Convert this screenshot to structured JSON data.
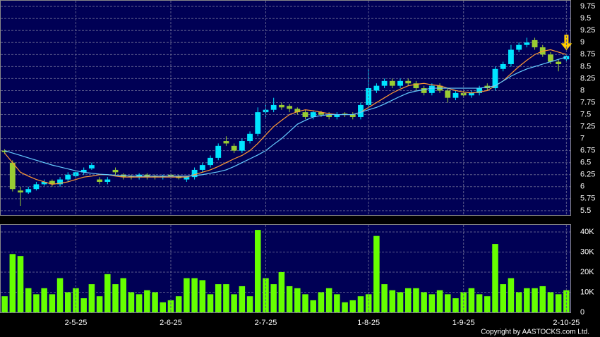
{
  "chart_data": [
    {
      "type": "candlestick",
      "open": [
        6.75,
        6.5,
        5.92,
        5.88,
        5.95,
        6.05,
        6.12,
        6.05,
        6.15,
        6.22,
        6.3,
        6.38,
        6.15,
        6.1,
        6.35,
        6.25,
        6.22,
        6.2,
        6.25,
        6.22,
        6.2,
        6.25,
        6.22,
        6.15,
        6.2,
        6.35,
        6.45,
        6.6,
        6.95,
        6.85,
        6.75,
        6.95,
        7.1,
        7.55,
        7.6,
        7.7,
        7.68,
        7.62,
        7.55,
        7.45,
        7.55,
        7.5,
        7.45,
        7.52,
        7.5,
        7.45,
        7.7,
        8.0,
        8.1,
        8.2,
        8.1,
        8.2,
        8.15,
        8.05,
        7.95,
        8.1,
        8.0,
        7.85,
        7.95,
        7.9,
        7.95,
        8.1,
        8.05,
        8.45,
        8.55,
        8.85,
        8.95,
        9.05,
        8.9,
        8.75,
        8.6,
        8.65
      ],
      "high": [
        6.78,
        6.55,
        6.0,
        6.0,
        6.1,
        6.15,
        6.15,
        6.2,
        6.3,
        6.35,
        6.4,
        6.5,
        6.2,
        6.2,
        6.4,
        6.28,
        6.25,
        6.28,
        6.28,
        6.25,
        6.25,
        6.28,
        6.25,
        6.22,
        6.4,
        6.5,
        6.65,
        6.9,
        7.05,
        6.9,
        7.0,
        7.15,
        7.65,
        7.7,
        7.85,
        7.75,
        7.72,
        7.65,
        7.6,
        7.58,
        7.58,
        7.55,
        7.55,
        7.55,
        7.55,
        7.75,
        8.45,
        8.15,
        8.25,
        8.25,
        8.25,
        8.25,
        8.2,
        8.1,
        8.15,
        8.15,
        8.05,
        8.0,
        8.0,
        8.0,
        8.1,
        8.15,
        8.5,
        8.6,
        8.95,
        9.0,
        9.1,
        9.1,
        8.95,
        8.8,
        8.65,
        8.75
      ],
      "low": [
        6.68,
        5.9,
        5.6,
        5.85,
        5.92,
        6.02,
        6.0,
        6.0,
        6.1,
        6.18,
        6.25,
        6.35,
        6.05,
        6.05,
        6.25,
        6.15,
        6.15,
        6.15,
        6.15,
        6.15,
        6.15,
        6.18,
        6.15,
        6.1,
        6.15,
        6.3,
        6.4,
        6.55,
        6.85,
        6.7,
        6.7,
        6.9,
        7.05,
        7.45,
        7.55,
        7.6,
        7.55,
        7.5,
        7.4,
        7.4,
        7.45,
        7.4,
        7.4,
        7.45,
        7.4,
        7.4,
        7.65,
        7.95,
        8.05,
        8.05,
        8.05,
        8.1,
        8.0,
        7.9,
        7.9,
        7.95,
        7.75,
        7.8,
        7.85,
        7.85,
        7.9,
        8.0,
        8.0,
        8.4,
        8.5,
        8.8,
        8.9,
        8.85,
        8.7,
        8.55,
        8.4,
        8.6
      ],
      "close": [
        6.72,
        5.95,
        5.88,
        5.95,
        6.05,
        6.1,
        6.05,
        6.15,
        6.25,
        6.3,
        6.35,
        6.45,
        6.1,
        6.15,
        6.3,
        6.2,
        6.2,
        6.25,
        6.2,
        6.2,
        6.22,
        6.22,
        6.18,
        6.2,
        6.35,
        6.45,
        6.6,
        6.85,
        6.9,
        6.75,
        6.95,
        7.1,
        7.55,
        7.6,
        7.7,
        7.65,
        7.62,
        7.55,
        7.45,
        7.55,
        7.5,
        7.45,
        7.5,
        7.5,
        7.45,
        7.7,
        8.05,
        8.1,
        8.2,
        8.1,
        8.2,
        8.15,
        8.05,
        7.95,
        8.1,
        8.0,
        7.85,
        7.95,
        7.9,
        7.95,
        8.05,
        8.05,
        8.45,
        8.55,
        8.85,
        8.95,
        9.0,
        8.9,
        8.75,
        8.6,
        8.55,
        8.72
      ],
      "up_color": "#00e5ff",
      "down_color": "#99cc33",
      "series": [
        {
          "color": "#ff9933",
          "values": [
            6.7,
            6.5,
            6.3,
            6.22,
            6.15,
            6.1,
            6.05,
            6.07,
            6.1,
            6.15,
            6.2,
            6.22,
            6.25,
            6.25,
            6.22,
            6.2,
            6.2,
            6.2,
            6.2,
            6.2,
            6.2,
            6.2,
            6.2,
            6.2,
            6.25,
            6.3,
            6.35,
            6.42,
            6.5,
            6.58,
            6.65,
            6.75,
            6.9,
            7.08,
            7.25,
            7.38,
            7.5,
            7.56,
            7.6,
            7.58,
            7.55,
            7.52,
            7.5,
            7.5,
            7.5,
            7.55,
            7.65,
            7.75,
            7.85,
            7.95,
            8.03,
            8.1,
            8.13,
            8.15,
            8.12,
            8.1,
            8.05,
            8.0,
            7.97,
            7.95,
            7.97,
            8.0,
            8.1,
            8.2,
            8.35,
            8.5,
            8.63,
            8.75,
            8.82,
            8.85,
            8.8,
            8.75
          ]
        },
        {
          "color": "#66ccff",
          "values": [
            6.75,
            6.7,
            6.65,
            6.6,
            6.55,
            6.5,
            6.45,
            6.41,
            6.37,
            6.33,
            6.3,
            6.28,
            6.26,
            6.25,
            6.24,
            6.23,
            6.22,
            6.22,
            6.22,
            6.22,
            6.22,
            6.22,
            6.22,
            6.22,
            6.23,
            6.25,
            6.28,
            6.31,
            6.35,
            6.42,
            6.5,
            6.58,
            6.66,
            6.75,
            6.88,
            7.0,
            7.15,
            7.3,
            7.38,
            7.45,
            7.48,
            7.5,
            7.5,
            7.5,
            7.5,
            7.55,
            7.6,
            7.65,
            7.72,
            7.8,
            7.88,
            7.95,
            7.99,
            8.02,
            8.05,
            8.05,
            8.05,
            8.05,
            8.05,
            8.05,
            8.05,
            8.07,
            8.1,
            8.2,
            8.3,
            8.38,
            8.45,
            8.5,
            8.55,
            8.6,
            8.65,
            8.7
          ]
        }
      ],
      "ylim": [
        5.41,
        9.87
      ],
      "yticks": [
        5.5,
        5.75,
        6,
        6.25,
        6.5,
        6.75,
        7,
        7.25,
        7.5,
        7.75,
        8,
        8.25,
        8.5,
        8.75,
        9,
        9.25,
        9.5,
        9.75
      ],
      "grid": true
    },
    {
      "type": "bar",
      "categories": [
        null,
        null,
        null,
        null,
        null,
        null,
        null,
        null,
        null,
        "2-5-25",
        null,
        null,
        null,
        null,
        null,
        null,
        null,
        null,
        null,
        null,
        null,
        "2-6-25",
        null,
        null,
        null,
        null,
        null,
        null,
        null,
        null,
        null,
        null,
        null,
        "2-7-25",
        null,
        null,
        null,
        null,
        null,
        null,
        null,
        null,
        null,
        null,
        null,
        null,
        "1-8-25",
        null,
        null,
        null,
        null,
        null,
        null,
        null,
        null,
        null,
        null,
        null,
        "1-9-25",
        null,
        null,
        null,
        null,
        null,
        null,
        null,
        null,
        null,
        null,
        null,
        null,
        "2-10-25"
      ],
      "values": [
        8000,
        29000,
        28000,
        12000,
        9000,
        12000,
        9000,
        17000,
        10000,
        12000,
        7000,
        14000,
        8000,
        19000,
        14000,
        17000,
        10000,
        9000,
        11000,
        10000,
        5000,
        6000,
        8000,
        17000,
        17000,
        16000,
        9000,
        14000,
        14000,
        9000,
        13000,
        8000,
        41000,
        17000,
        14000,
        20000,
        13000,
        12000,
        9000,
        6000,
        10000,
        12000,
        9000,
        5000,
        6000,
        8000,
        9000,
        38000,
        14000,
        11000,
        10000,
        12000,
        12000,
        10000,
        9000,
        11000,
        9000,
        7000,
        10000,
        12000,
        9000,
        8000,
        34000,
        14000,
        17000,
        10000,
        12000,
        12000,
        13000,
        10000,
        9000,
        11000
      ],
      "color": "#66ff00",
      "ylim": [
        0,
        43500
      ],
      "yticks": [
        0,
        {
          "value": 10000,
          "label": "10K"
        },
        {
          "value": 20000,
          "label": "20K"
        },
        {
          "value": 30000,
          "label": "30K"
        },
        {
          "value": 40000,
          "label": "40K"
        }
      ],
      "grid": true
    }
  ],
  "footer": "Copyright by AASTOCKS.com Ltd."
}
